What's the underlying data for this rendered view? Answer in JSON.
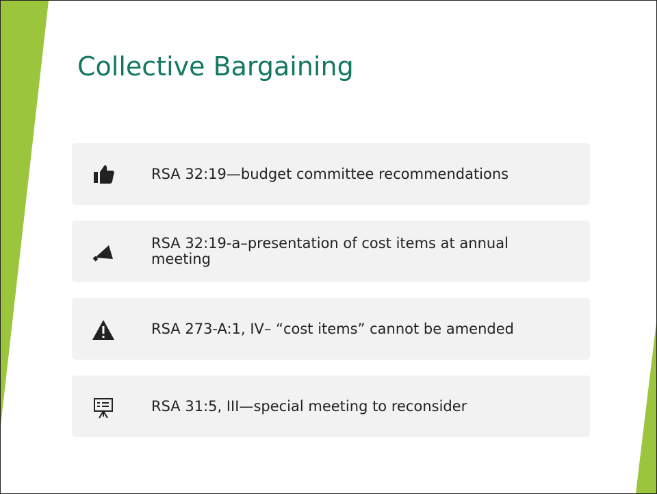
{
  "title": "Collective Bargaining",
  "items": [
    {
      "text": "RSA 32:19—budget committee recommendations"
    },
    {
      "text": "RSA 32:19-a–presentation of cost items at annual meeting"
    },
    {
      "text": "RSA 273-A:1, IV– “cost items” cannot be amended"
    },
    {
      "text": "RSA 31:5, III—special meeting to reconsider"
    }
  ]
}
